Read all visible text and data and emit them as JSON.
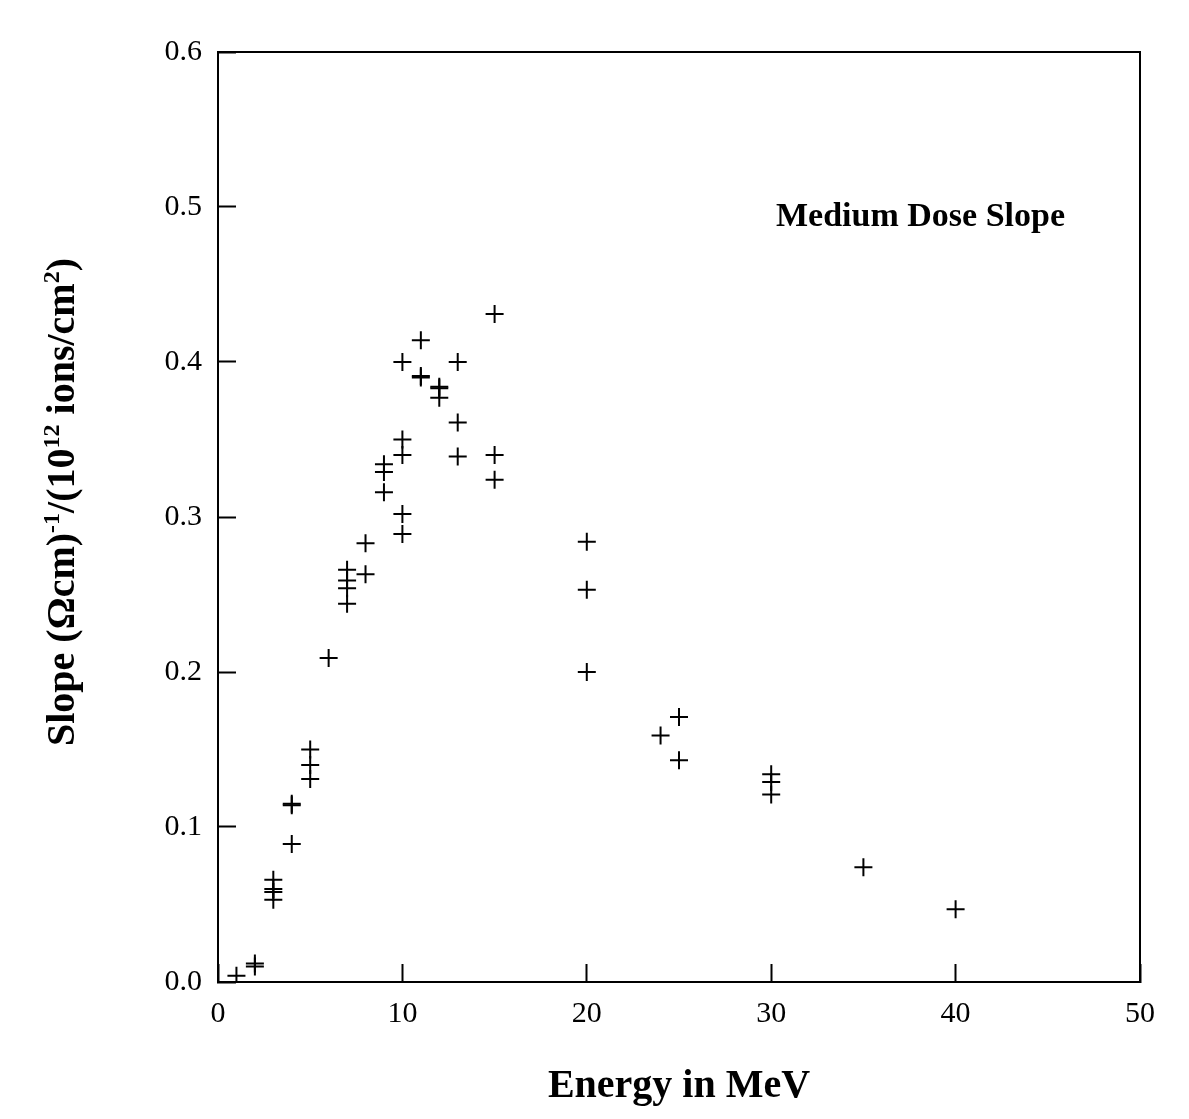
{
  "chart_data": {
    "type": "scatter",
    "xlabel": "Energy in MeV",
    "ylabel": "Slope (Ωcm)$^{-1}$/(10$^{12}$ ions/cm$^{2}$)",
    "annotations": [
      "Medium Dose Slope"
    ],
    "x": [
      1,
      2,
      2,
      3,
      3,
      3,
      3,
      4,
      4,
      4,
      5,
      5,
      5,
      6,
      7,
      7,
      7,
      7,
      8,
      8,
      9,
      9,
      9,
      10,
      10,
      10,
      10,
      10,
      11,
      11,
      11,
      12,
      12,
      12,
      13,
      13,
      13,
      15,
      15,
      15,
      20,
      20,
      20,
      24,
      25,
      25,
      30,
      30,
      30,
      35,
      40
    ],
    "values": [
      0.004,
      0.012,
      0.01,
      0.066,
      0.06,
      0.058,
      0.053,
      0.115,
      0.114,
      0.089,
      0.15,
      0.14,
      0.131,
      0.209,
      0.266,
      0.259,
      0.254,
      0.244,
      0.283,
      0.263,
      0.334,
      0.329,
      0.316,
      0.4,
      0.35,
      0.34,
      0.302,
      0.289,
      0.414,
      0.391,
      0.39,
      0.384,
      0.383,
      0.377,
      0.4,
      0.361,
      0.339,
      0.431,
      0.34,
      0.324,
      0.284,
      0.253,
      0.2,
      0.159,
      0.171,
      0.143,
      0.134,
      0.129,
      0.121,
      0.074,
      0.047
    ],
    "color": "#000000",
    "marker": "cross",
    "grid": false,
    "legend": false,
    "xlim": [
      0,
      50
    ],
    "ylim": [
      0,
      0.6
    ],
    "xticks": [
      0,
      10,
      20,
      30,
      40,
      50
    ],
    "yticks": [
      {
        "value": 0,
        "label": "0.0"
      },
      0.1,
      0.2,
      0.3,
      0.4,
      0.5,
      0.6
    ]
  }
}
